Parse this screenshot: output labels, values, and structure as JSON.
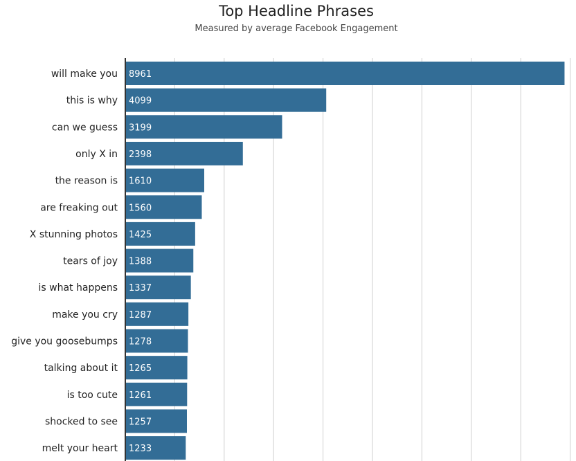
{
  "chart_data": {
    "type": "bar",
    "orientation": "horizontal",
    "title": "Top Headline Phrases",
    "subtitle": "Measured by average Facebook Engagement",
    "categories": [
      "will make you",
      "this is why",
      "can we guess",
      "only X in",
      "the reason is",
      "are freaking out",
      "X stunning photos",
      "tears of joy",
      "is what happens",
      "make you cry",
      "give you goosebumps",
      "talking about it",
      "is too cute",
      "shocked to see",
      "melt your heart"
    ],
    "values": [
      8961,
      4099,
      3199,
      2398,
      1610,
      1560,
      1425,
      1388,
      1337,
      1287,
      1278,
      1265,
      1261,
      1257,
      1233
    ],
    "xlim": [
      0,
      9000
    ],
    "gridlines": true,
    "bar_color": "#336d96",
    "label_color": "#ffffff"
  }
}
